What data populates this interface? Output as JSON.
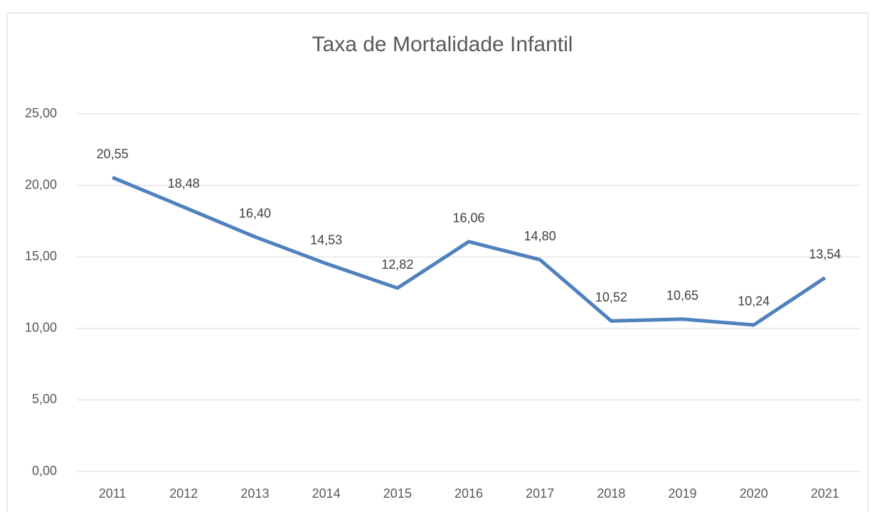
{
  "chart_data": {
    "type": "line",
    "title": "Taxa de Mortalidade Infantil",
    "categories": [
      "2011",
      "2012",
      "2013",
      "2014",
      "2015",
      "2016",
      "2017",
      "2018",
      "2019",
      "2020",
      "2021"
    ],
    "series": [
      {
        "name": "Taxa de Mortalidade Infantil",
        "color": "#4f81bd",
        "values": [
          20.55,
          18.48,
          16.4,
          14.53,
          12.82,
          16.06,
          14.8,
          10.52,
          10.65,
          10.24,
          13.54
        ],
        "value_labels": [
          "20,55",
          "18,48",
          "16,40",
          "14,53",
          "12,82",
          "16,06",
          "14,80",
          "10,52",
          "10,65",
          "10,24",
          "13,54"
        ]
      }
    ],
    "ylim": [
      0,
      25
    ],
    "yticks": [
      {
        "value": 0,
        "label": "0,00"
      },
      {
        "value": 5,
        "label": "5,00"
      },
      {
        "value": 10,
        "label": "10,00"
      },
      {
        "value": 15,
        "label": "15,00"
      },
      {
        "value": 20,
        "label": "20,00"
      },
      {
        "value": 25,
        "label": "25,00"
      }
    ],
    "grid": true
  }
}
